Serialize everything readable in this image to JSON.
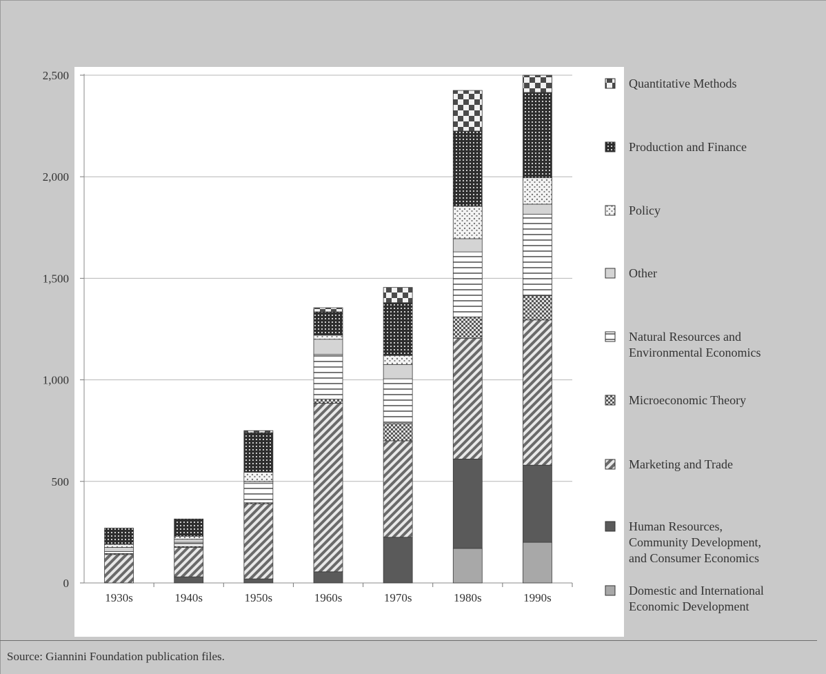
{
  "source_note": "Source: Giannini Foundation publication files.",
  "chart_data": {
    "type": "bar",
    "stacked": true,
    "categories": [
      "1930s",
      "1940s",
      "1950s",
      "1960s",
      "1970s",
      "1980s",
      "1990s"
    ],
    "y_ticks": [
      "0",
      "500",
      "1,000",
      "1,500",
      "2,000",
      "2,500"
    ],
    "ylim": [
      0,
      2500
    ],
    "grid": true,
    "legend_position": "right",
    "series": [
      {
        "name": "Domestic and International Economic Development",
        "pattern": "solid-light",
        "color": "#a9a9a9",
        "values": [
          0,
          0,
          0,
          0,
          0,
          170,
          200
        ]
      },
      {
        "name": "Human Resources, Community Development, and Consumer Economics",
        "pattern": "solid-dark",
        "color": "#595959",
        "values": [
          0,
          30,
          20,
          55,
          225,
          440,
          380
        ]
      },
      {
        "name": "Marketing and Trade",
        "pattern": "diagonal",
        "color": "#666666",
        "values": [
          140,
          145,
          370,
          830,
          475,
          595,
          715
        ]
      },
      {
        "name": "Microeconomic Theory",
        "pattern": "checker",
        "color": "#555555",
        "values": [
          5,
          5,
          5,
          20,
          85,
          105,
          120
        ]
      },
      {
        "name": "Natural Resources and Environmental Economics",
        "pattern": "horizontal",
        "color": "#777777",
        "values": [
          10,
          20,
          95,
          220,
          220,
          320,
          400
        ]
      },
      {
        "name": "Other",
        "pattern": "solid-pale",
        "color": "#cccccc",
        "values": [
          20,
          15,
          10,
          75,
          70,
          65,
          50
        ]
      },
      {
        "name": "Policy",
        "pattern": "dots",
        "color": "#888888",
        "values": [
          15,
          15,
          45,
          20,
          45,
          160,
          130
        ]
      },
      {
        "name": "Production and Finance",
        "pattern": "grid-dark",
        "color": "#333333",
        "values": [
          80,
          85,
          195,
          115,
          260,
          370,
          420
        ]
      },
      {
        "name": "Quantitative Methods",
        "pattern": "big-checker",
        "color": "#444444",
        "values": [
          0,
          0,
          10,
          20,
          75,
          200,
          85
        ]
      }
    ],
    "legend_order": [
      {
        "lines": [
          "Quantitative Methods"
        ],
        "pattern": "big-checker"
      },
      {
        "lines": [
          "Production and Finance"
        ],
        "pattern": "grid-dark"
      },
      {
        "lines": [
          "Policy"
        ],
        "pattern": "dots"
      },
      {
        "lines": [
          "Other"
        ],
        "pattern": "solid-pale"
      },
      {
        "lines": [
          "Natural Resources and",
          "Environmental Economics"
        ],
        "pattern": "horizontal"
      },
      {
        "lines": [
          "Microeconomic Theory"
        ],
        "pattern": "checker"
      },
      {
        "lines": [
          "Marketing and Trade"
        ],
        "pattern": "diagonal"
      },
      {
        "lines": [
          "Human Resources,",
          "Community Development,",
          "and Consumer Economics"
        ],
        "pattern": "solid-dark"
      },
      {
        "lines": [
          "Domestic and International",
          "Economic Development"
        ],
        "pattern": "solid-light"
      }
    ]
  }
}
